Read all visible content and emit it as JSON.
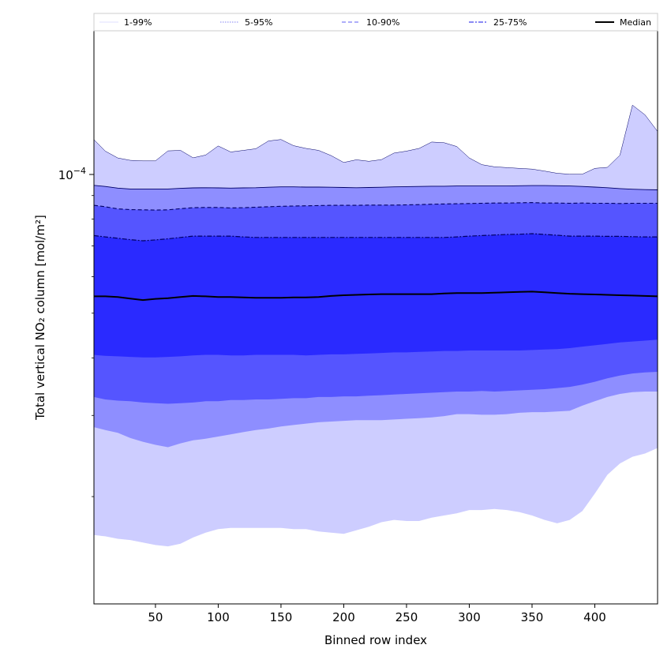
{
  "chart_data": {
    "type": "area",
    "title": "",
    "xlabel": "Binned row index",
    "ylabel": "Total vertical NO₂ column [mol/m²]",
    "yscale": "log",
    "xlim": [
      1,
      450
    ],
    "ylim": [
      1.17e-05,
      0.000205
    ],
    "x_ticks": [
      50,
      100,
      150,
      200,
      250,
      300,
      350,
      400
    ],
    "y_major_tick": {
      "value": 0.0001,
      "base": "10",
      "exponent": "−4"
    },
    "y_minor_ticks": [
      2e-05,
      3e-05,
      4e-05,
      5e-05,
      6e-05,
      7e-05,
      8e-05,
      9e-05
    ],
    "legend": {
      "position": "top",
      "entries": [
        {
          "label": "1-99%",
          "style": "solid",
          "color": "#e5e5ff"
        },
        {
          "label": "5-95%",
          "style": "dotted",
          "color": "#9c9cf6"
        },
        {
          "label": "10-90%",
          "style": "dashed",
          "color": "#7d7df6"
        },
        {
          "label": "25-75%",
          "style": "dashdot",
          "color": "#4444ee"
        },
        {
          "label": "Median",
          "style": "solid",
          "color": "#000000"
        }
      ]
    },
    "x": [
      1,
      10,
      20,
      30,
      40,
      50,
      60,
      70,
      80,
      90,
      100,
      110,
      120,
      130,
      140,
      150,
      160,
      170,
      180,
      190,
      200,
      210,
      220,
      230,
      240,
      250,
      260,
      270,
      280,
      290,
      300,
      310,
      320,
      330,
      340,
      350,
      360,
      370,
      380,
      390,
      400,
      410,
      420,
      430,
      440,
      450
    ],
    "series": [
      {
        "name": "1%",
        "values": [
          1.65e-05,
          1.64e-05,
          1.62e-05,
          1.61e-05,
          1.59e-05,
          1.57e-05,
          1.56e-05,
          1.58e-05,
          1.63e-05,
          1.67e-05,
          1.7e-05,
          1.71e-05,
          1.71e-05,
          1.71e-05,
          1.71e-05,
          1.71e-05,
          1.7e-05,
          1.7e-05,
          1.68e-05,
          1.67e-05,
          1.66e-05,
          1.69e-05,
          1.72e-05,
          1.76e-05,
          1.78e-05,
          1.77e-05,
          1.77e-05,
          1.8e-05,
          1.82e-05,
          1.84e-05,
          1.87e-05,
          1.87e-05,
          1.88e-05,
          1.87e-05,
          1.85e-05,
          1.82e-05,
          1.78e-05,
          1.75e-05,
          1.78e-05,
          1.86e-05,
          2.03e-05,
          2.23e-05,
          2.36e-05,
          2.44e-05,
          2.48e-05,
          2.55e-05
        ]
      },
      {
        "name": "5%",
        "values": [
          2.83e-05,
          2.79e-05,
          2.75e-05,
          2.68e-05,
          2.63e-05,
          2.59e-05,
          2.56e-05,
          2.61e-05,
          2.65e-05,
          2.67e-05,
          2.7e-05,
          2.73e-05,
          2.76e-05,
          2.79e-05,
          2.81e-05,
          2.84e-05,
          2.86e-05,
          2.88e-05,
          2.9e-05,
          2.91e-05,
          2.92e-05,
          2.93e-05,
          2.93e-05,
          2.93e-05,
          2.94e-05,
          2.95e-05,
          2.96e-05,
          2.97e-05,
          2.99e-05,
          3.02e-05,
          3.02e-05,
          3.01e-05,
          3.01e-05,
          3.02e-05,
          3.04e-05,
          3.05e-05,
          3.05e-05,
          3.06e-05,
          3.07e-05,
          3.15e-05,
          3.22e-05,
          3.29e-05,
          3.34e-05,
          3.37e-05,
          3.38e-05,
          3.38e-05
        ]
      },
      {
        "name": "10%",
        "values": [
          3.29e-05,
          3.25e-05,
          3.23e-05,
          3.22e-05,
          3.2e-05,
          3.19e-05,
          3.18e-05,
          3.19e-05,
          3.2e-05,
          3.22e-05,
          3.22e-05,
          3.24e-05,
          3.24e-05,
          3.25e-05,
          3.25e-05,
          3.26e-05,
          3.27e-05,
          3.27e-05,
          3.29e-05,
          3.29e-05,
          3.3e-05,
          3.3e-05,
          3.31e-05,
          3.32e-05,
          3.33e-05,
          3.34e-05,
          3.35e-05,
          3.36e-05,
          3.37e-05,
          3.38e-05,
          3.38e-05,
          3.39e-05,
          3.38e-05,
          3.39e-05,
          3.4e-05,
          3.41e-05,
          3.42e-05,
          3.44e-05,
          3.46e-05,
          3.5e-05,
          3.55e-05,
          3.61e-05,
          3.66e-05,
          3.7e-05,
          3.72e-05,
          3.73e-05
        ]
      },
      {
        "name": "25%",
        "values": [
          4.06e-05,
          4.04e-05,
          4.03e-05,
          4.02e-05,
          4.01e-05,
          4.01e-05,
          4.02e-05,
          4.03e-05,
          4.05e-05,
          4.06e-05,
          4.06e-05,
          4.05e-05,
          4.05e-05,
          4.06e-05,
          4.06e-05,
          4.06e-05,
          4.06e-05,
          4.05e-05,
          4.06e-05,
          4.07e-05,
          4.07e-05,
          4.08e-05,
          4.09e-05,
          4.1e-05,
          4.11e-05,
          4.11e-05,
          4.12e-05,
          4.13e-05,
          4.14e-05,
          4.14e-05,
          4.15e-05,
          4.15e-05,
          4.15e-05,
          4.15e-05,
          4.15e-05,
          4.16e-05,
          4.17e-05,
          4.18e-05,
          4.2e-05,
          4.23e-05,
          4.26e-05,
          4.29e-05,
          4.32e-05,
          4.34e-05,
          4.36e-05,
          4.38e-05
        ]
      },
      {
        "name": "Median",
        "values": [
          5.44e-05,
          5.44e-05,
          5.42e-05,
          5.38e-05,
          5.34e-05,
          5.37e-05,
          5.39e-05,
          5.42e-05,
          5.45e-05,
          5.44e-05,
          5.42e-05,
          5.42e-05,
          5.41e-05,
          5.4e-05,
          5.4e-05,
          5.4e-05,
          5.41e-05,
          5.41e-05,
          5.42e-05,
          5.45e-05,
          5.47e-05,
          5.48e-05,
          5.49e-05,
          5.5e-05,
          5.5e-05,
          5.5e-05,
          5.5e-05,
          5.5e-05,
          5.52e-05,
          5.53e-05,
          5.53e-05,
          5.53e-05,
          5.54e-05,
          5.55e-05,
          5.56e-05,
          5.57e-05,
          5.55e-05,
          5.53e-05,
          5.51e-05,
          5.5e-05,
          5.49e-05,
          5.48e-05,
          5.47e-05,
          5.46e-05,
          5.45e-05,
          5.44e-05
        ]
      },
      {
        "name": "75%",
        "values": [
          7.37e-05,
          7.32e-05,
          7.27e-05,
          7.22e-05,
          7.18e-05,
          7.21e-05,
          7.25e-05,
          7.3e-05,
          7.35e-05,
          7.35e-05,
          7.35e-05,
          7.35e-05,
          7.32e-05,
          7.3e-05,
          7.3e-05,
          7.3e-05,
          7.3e-05,
          7.3e-05,
          7.3e-05,
          7.3e-05,
          7.3e-05,
          7.3e-05,
          7.3e-05,
          7.3e-05,
          7.3e-05,
          7.3e-05,
          7.3e-05,
          7.3e-05,
          7.3e-05,
          7.32e-05,
          7.35e-05,
          7.37e-05,
          7.39e-05,
          7.41e-05,
          7.42e-05,
          7.44e-05,
          7.41e-05,
          7.38e-05,
          7.35e-05,
          7.35e-05,
          7.35e-05,
          7.34e-05,
          7.34e-05,
          7.33e-05,
          7.32e-05,
          7.32e-05
        ]
      },
      {
        "name": "90%",
        "values": [
          8.57e-05,
          8.51e-05,
          8.42e-05,
          8.39e-05,
          8.38e-05,
          8.37e-05,
          8.38e-05,
          8.43e-05,
          8.47e-05,
          8.48e-05,
          8.48e-05,
          8.46e-05,
          8.47e-05,
          8.49e-05,
          8.51e-05,
          8.53e-05,
          8.54e-05,
          8.55e-05,
          8.56e-05,
          8.57e-05,
          8.57e-05,
          8.57e-05,
          8.58e-05,
          8.58e-05,
          8.58e-05,
          8.59e-05,
          8.6e-05,
          8.62e-05,
          8.63e-05,
          8.64e-05,
          8.65e-05,
          8.66e-05,
          8.67e-05,
          8.67e-05,
          8.68e-05,
          8.69e-05,
          8.67e-05,
          8.67e-05,
          8.66e-05,
          8.67e-05,
          8.66e-05,
          8.66e-05,
          8.65e-05,
          8.66e-05,
          8.66e-05,
          8.66e-05
        ]
      },
      {
        "name": "95%",
        "values": [
          9.47e-05,
          9.42e-05,
          9.34e-05,
          9.3e-05,
          9.3e-05,
          9.3e-05,
          9.3e-05,
          9.33e-05,
          9.35e-05,
          9.36e-05,
          9.35e-05,
          9.34e-05,
          9.35e-05,
          9.36e-05,
          9.38e-05,
          9.4e-05,
          9.4e-05,
          9.39e-05,
          9.39e-05,
          9.38e-05,
          9.37e-05,
          9.36e-05,
          9.37e-05,
          9.38e-05,
          9.4e-05,
          9.41e-05,
          9.42e-05,
          9.43e-05,
          9.43e-05,
          9.44e-05,
          9.44e-05,
          9.44e-05,
          9.44e-05,
          9.44e-05,
          9.45e-05,
          9.46e-05,
          9.46e-05,
          9.45e-05,
          9.44e-05,
          9.42e-05,
          9.39e-05,
          9.36e-05,
          9.32e-05,
          9.29e-05,
          9.27e-05,
          9.26e-05
        ]
      },
      {
        "name": "99%",
        "values": [
          0.000119,
          0.0001124,
          0.0001086,
          0.0001073,
          0.000107,
          0.000107,
          0.0001125,
          0.0001128,
          0.0001087,
          0.0001102,
          0.0001153,
          0.0001119,
          0.0001128,
          0.0001137,
          0.0001182,
          0.0001191,
          0.0001155,
          0.0001139,
          0.0001128,
          0.0001099,
          0.0001062,
          0.0001076,
          0.0001068,
          0.0001077,
          0.0001113,
          0.0001124,
          0.0001139,
          0.0001176,
          0.0001172,
          0.000115,
          0.0001086,
          0.000105,
          0.0001039,
          0.0001035,
          0.0001031,
          0.0001027,
          0.0001017,
          0.0001006,
          0.0001001,
          0.0001001,
          0.0001031,
          0.0001036,
          0.0001101,
          0.0001414,
          0.0001347,
          0.000124
        ]
      }
    ],
    "bands": [
      {
        "name": "1-99%",
        "lower": "1%",
        "upper": "99%",
        "color": "#cdcdff"
      },
      {
        "name": "5-95%",
        "lower": "5%",
        "upper": "95%",
        "color": "#8e8eff"
      },
      {
        "name": "10-90%",
        "lower": "10%",
        "upper": "90%",
        "color": "#5555ff"
      },
      {
        "name": "25-75%",
        "lower": "25%",
        "upper": "75%",
        "color": "#2a2aff"
      }
    ]
  }
}
